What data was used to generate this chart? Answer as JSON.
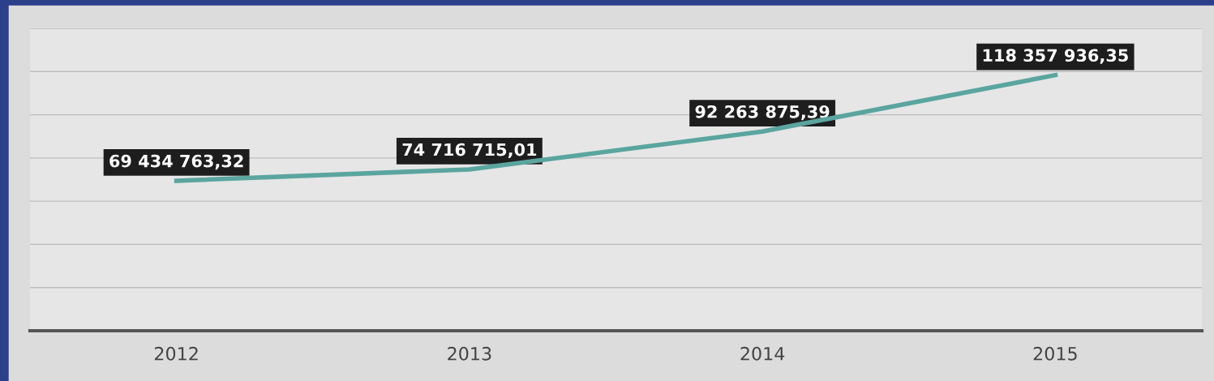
{
  "chart_data": {
    "type": "line",
    "categories": [
      "2012",
      "2013",
      "2014",
      "2015"
    ],
    "series": [
      {
        "color": "#5ba5a0",
        "values": [
          69434763.32,
          74716715.01,
          92263875.39,
          118357936.35
        ],
        "value_labels": [
          "69 434 763,32",
          "74 716 715,01",
          "92 263 875,39",
          "118 357 936,35"
        ]
      }
    ],
    "ylim": [
      0,
      140000000
    ],
    "yticks": [
      {
        "value": 0,
        "label": null
      },
      {
        "value": 20000000,
        "label": null
      },
      {
        "value": 40000000,
        "label": null
      },
      {
        "value": 60000000,
        "label": null
      },
      {
        "value": 80000000,
        "label": null
      },
      {
        "value": 100000000,
        "label": null
      },
      {
        "value": 120000000,
        "label": null
      },
      {
        "value": 140000000,
        "label": null
      }
    ],
    "grid": "y",
    "tick_labels": "x",
    "line_style": "solid"
  }
}
